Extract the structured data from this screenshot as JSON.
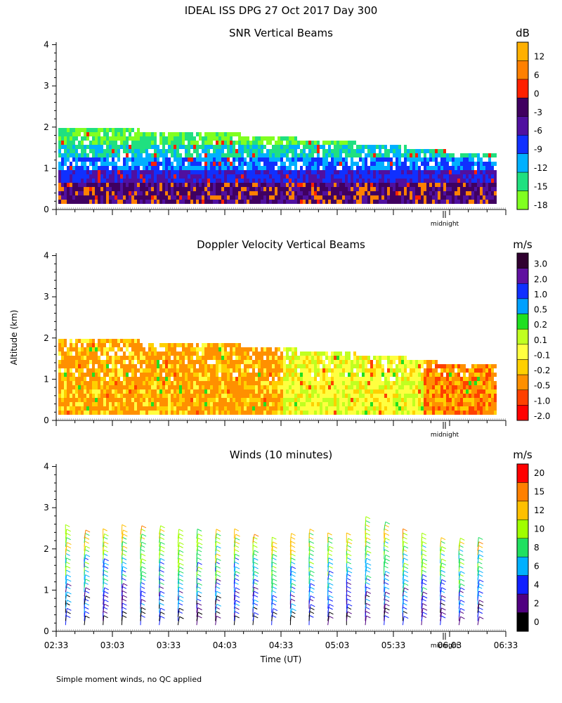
{
  "header": {
    "title": "IDEAL ISS DPG  27 Oct 2017 Day 300"
  },
  "footer": {
    "note": "Simple moment winds, no QC applied"
  },
  "shared": {
    "ylabel": "Altitude (km)",
    "xlabel": "Time (UT)",
    "midnight_label": "midnight",
    "y_ticks": [
      "0",
      "1",
      "2",
      "3",
      "4"
    ],
    "x_ticks": [
      "02:33",
      "03:03",
      "03:33",
      "04:03",
      "04:33",
      "05:03",
      "05:33",
      "06:03",
      "06:33"
    ]
  },
  "chart_data": [
    {
      "type": "heatmap",
      "title": "SNR Vertical Beams",
      "colorbar_unit": "dB",
      "colorbar_labels": [
        "12",
        "6",
        "0",
        "-3",
        "-6",
        "-9",
        "-12",
        "-15",
        "-18"
      ],
      "colorbar_colors": [
        "#ffb000",
        "#ff8000",
        "#ff2000",
        "#400060",
        "#5010a0",
        "#1030ff",
        "#00b0ff",
        "#20e080",
        "#80ff20"
      ],
      "ylim": [
        0,
        4
      ],
      "xlim": [
        "02:33",
        "06:33"
      ],
      "data_top_km_by_time": [
        {
          "t": "02:33",
          "top": 1.9
        },
        {
          "t": "03:03",
          "top": 1.9
        },
        {
          "t": "03:33",
          "top": 1.85
        },
        {
          "t": "04:03",
          "top": 1.8
        },
        {
          "t": "04:33",
          "top": 1.7
        },
        {
          "t": "05:03",
          "top": 1.6
        },
        {
          "t": "05:33",
          "top": 1.5
        },
        {
          "t": "06:03",
          "top": 1.35
        },
        {
          "t": "06:25",
          "top": 1.3
        }
      ]
    },
    {
      "type": "heatmap",
      "title": "Doppler Velocity Vertical Beams",
      "colorbar_unit": "m/s",
      "colorbar_labels": [
        "3.0",
        "2.0",
        "1.0",
        "0.5",
        "0.2",
        "0.1",
        "-0.1",
        "-0.2",
        "-0.5",
        "-1.0",
        "-2.0"
      ],
      "colorbar_colors": [
        "#300030",
        "#6010a0",
        "#1030ff",
        "#00a0ff",
        "#20e020",
        "#c0ff20",
        "#ffff40",
        "#ffd000",
        "#ff9000",
        "#ff4000",
        "#ff0000"
      ],
      "ylim": [
        0,
        4
      ],
      "xlim": [
        "02:33",
        "06:33"
      ]
    },
    {
      "type": "scatter",
      "title": "Winds (10 minutes)",
      "colorbar_unit": "m/s",
      "colorbar_labels": [
        "20",
        "15",
        "12",
        "10",
        "8",
        "6",
        "4",
        "2",
        "0"
      ],
      "colorbar_colors": [
        "#ff0000",
        "#ff8000",
        "#ffc000",
        "#a0ff00",
        "#20e060",
        "#00b0ff",
        "#1020ff",
        "#500080",
        "#000000"
      ],
      "ylim": [
        0,
        4
      ],
      "xlim": [
        "02:33",
        "06:33"
      ],
      "profile_times": [
        "02:38",
        "02:48",
        "02:58",
        "03:08",
        "03:18",
        "03:28",
        "03:38",
        "03:48",
        "03:58",
        "04:08",
        "04:18",
        "04:28",
        "04:38",
        "04:48",
        "04:58",
        "05:08",
        "05:18",
        "05:28",
        "05:38",
        "05:48",
        "05:58",
        "06:08",
        "06:18"
      ],
      "profile_top_km": [
        2.4,
        2.35,
        2.35,
        2.4,
        2.4,
        2.4,
        2.35,
        2.3,
        2.3,
        2.3,
        2.2,
        2.15,
        2.2,
        2.35,
        2.25,
        2.2,
        2.6,
        2.5,
        2.3,
        2.2,
        2.1,
        2.1,
        2.1
      ]
    }
  ]
}
